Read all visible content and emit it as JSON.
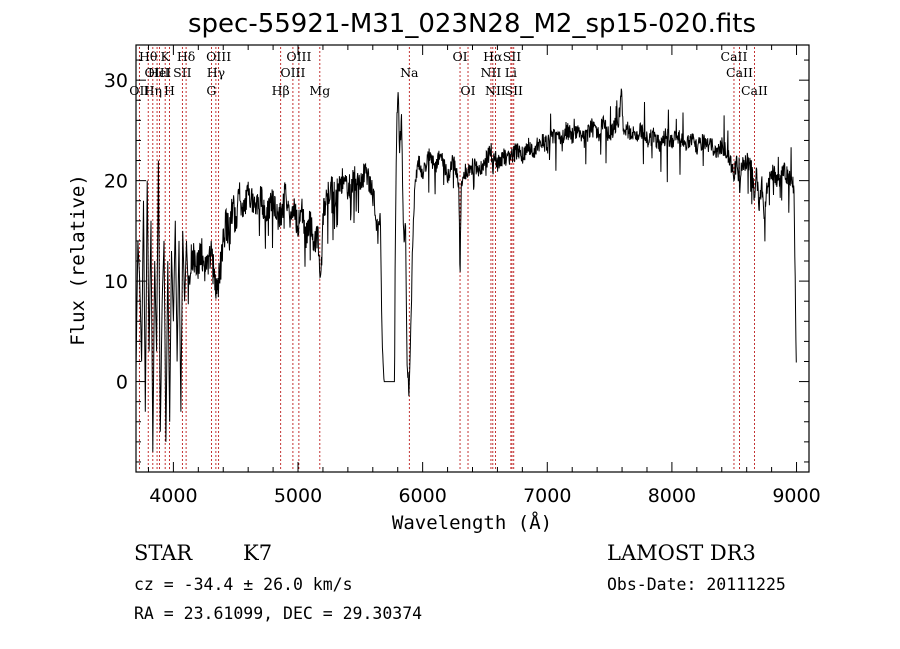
{
  "chart_data": {
    "type": "line",
    "title": "spec-55921-M31_023N28_M2_sp15-020.fits",
    "xlabel": "Wavelength (Å)",
    "ylabel": "Flux (relative)",
    "xlim": [
      3700,
      9100
    ],
    "ylim": [
      -9,
      33.5
    ],
    "xticks": [
      4000,
      5000,
      6000,
      7000,
      8000,
      9000
    ],
    "yticks": [
      0,
      10,
      20,
      30
    ],
    "grid": false,
    "spectral_lines": [
      {
        "name": "OII",
        "wavelength": 3727,
        "row": 3
      },
      {
        "name": "Hθ",
        "wavelength": 3798,
        "row": 1
      },
      {
        "name": "Hη",
        "wavelength": 3835,
        "row": 3
      },
      {
        "name": "OIII",
        "wavelength": 3869,
        "row": 2
      },
      {
        "name": "HeI",
        "wavelength": 3889,
        "row": 2
      },
      {
        "name": "K",
        "wavelength": 3934,
        "row": 1
      },
      {
        "name": "H",
        "wavelength": 3968,
        "row": 3
      },
      {
        "name": "SII",
        "wavelength": 4072,
        "row": 2
      },
      {
        "name": "Hδ",
        "wavelength": 4102,
        "row": 1
      },
      {
        "name": "G",
        "wavelength": 4305,
        "row": 3
      },
      {
        "name": "Hγ",
        "wavelength": 4341,
        "row": 2
      },
      {
        "name": "OIII",
        "wavelength": 4363,
        "row": 1
      },
      {
        "name": "Hβ",
        "wavelength": 4861,
        "row": 3
      },
      {
        "name": "OIII",
        "wavelength": 4959,
        "row": 2
      },
      {
        "name": "OIII",
        "wavelength": 5007,
        "row": 1
      },
      {
        "name": "Mg",
        "wavelength": 5175,
        "row": 3
      },
      {
        "name": "Na",
        "wavelength": 5893,
        "row": 2
      },
      {
        "name": "OI",
        "wavelength": 6300,
        "row": 1
      },
      {
        "name": "OI",
        "wavelength": 6364,
        "row": 3
      },
      {
        "name": "NII",
        "wavelength": 6548,
        "row": 2
      },
      {
        "name": "Hα",
        "wavelength": 6563,
        "row": 1
      },
      {
        "name": "NII",
        "wavelength": 6584,
        "row": 3
      },
      {
        "name": "SII",
        "wavelength": 6717,
        "row": 1
      },
      {
        "name": "Li",
        "wavelength": 6708,
        "row": 2
      },
      {
        "name": "SII",
        "wavelength": 6731,
        "row": 3
      },
      {
        "name": "CaII",
        "wavelength": 8498,
        "row": 1
      },
      {
        "name": "CaII",
        "wavelength": 8542,
        "row": 2
      },
      {
        "name": "CaII",
        "wavelength": 8662,
        "row": 3
      }
    ],
    "series": [
      {
        "name": "flux",
        "anchors": [
          [
            3700,
            1
          ],
          [
            3715,
            14
          ],
          [
            3730,
            10
          ],
          [
            3745,
            2
          ],
          [
            3760,
            18
          ],
          [
            3775,
            -3
          ],
          [
            3790,
            20
          ],
          [
            3805,
            3
          ],
          [
            3820,
            16
          ],
          [
            3835,
            -7
          ],
          [
            3850,
            12
          ],
          [
            3865,
            3
          ],
          [
            3880,
            22
          ],
          [
            3895,
            -5
          ],
          [
            3910,
            8
          ],
          [
            3925,
            14
          ],
          [
            3940,
            -6
          ],
          [
            3955,
            12
          ],
          [
            3970,
            -4
          ],
          [
            3985,
            13
          ],
          [
            4000,
            6
          ],
          [
            4015,
            16
          ],
          [
            4030,
            2
          ],
          [
            4045,
            14
          ],
          [
            4060,
            -3
          ],
          [
            4075,
            15
          ],
          [
            4090,
            8
          ],
          [
            4105,
            14
          ],
          [
            4120,
            9
          ],
          [
            4150,
            13
          ],
          [
            4180,
            11
          ],
          [
            4200,
            12
          ],
          [
            4230,
            13
          ],
          [
            4260,
            10.5
          ],
          [
            4300,
            13
          ],
          [
            4320,
            11
          ],
          [
            4350,
            9
          ],
          [
            4370,
            11
          ],
          [
            4400,
            13.5
          ],
          [
            4420,
            16
          ],
          [
            4450,
            14.5
          ],
          [
            4480,
            18
          ],
          [
            4500,
            15.5
          ],
          [
            4530,
            19
          ],
          [
            4560,
            16.5
          ],
          [
            4600,
            19.5
          ],
          [
            4650,
            17
          ],
          [
            4700,
            18.5
          ],
          [
            4750,
            16.5
          ],
          [
            4800,
            18
          ],
          [
            4840,
            16
          ],
          [
            4870,
            17
          ],
          [
            4900,
            19
          ],
          [
            4930,
            16.5
          ],
          [
            4960,
            17.5
          ],
          [
            5000,
            15.5
          ],
          [
            5030,
            17
          ],
          [
            5060,
            14.5
          ],
          [
            5100,
            16
          ],
          [
            5130,
            13.5
          ],
          [
            5160,
            15
          ],
          [
            5175,
            10.5
          ],
          [
            5190,
            12.5
          ],
          [
            5200,
            16.5
          ],
          [
            5230,
            18
          ],
          [
            5260,
            19.5
          ],
          [
            5300,
            18.5
          ],
          [
            5350,
            20
          ],
          [
            5400,
            19
          ],
          [
            5450,
            20.5
          ],
          [
            5500,
            19.5
          ],
          [
            5550,
            21
          ],
          [
            5600,
            19
          ],
          [
            5640,
            15
          ],
          [
            5660,
            16.5
          ],
          [
            5675,
            4
          ],
          [
            5690,
            0
          ],
          [
            5775,
            0
          ],
          [
            5780,
            14
          ],
          [
            5795,
            27
          ],
          [
            5805,
            28.5
          ],
          [
            5815,
            23
          ],
          [
            5830,
            26
          ],
          [
            5850,
            13
          ],
          [
            5862,
            16
          ],
          [
            5875,
            2
          ],
          [
            5890,
            -1
          ],
          [
            5905,
            5
          ],
          [
            5920,
            14
          ],
          [
            5935,
            19
          ],
          [
            5960,
            22
          ],
          [
            6000,
            21
          ],
          [
            6050,
            22.5
          ],
          [
            6100,
            21.5
          ],
          [
            6150,
            22.5
          ],
          [
            6200,
            20.5
          ],
          [
            6250,
            22
          ],
          [
            6290,
            20
          ],
          [
            6300,
            10
          ],
          [
            6310,
            20
          ],
          [
            6350,
            21
          ],
          [
            6400,
            21.5
          ],
          [
            6450,
            21
          ],
          [
            6500,
            22
          ],
          [
            6550,
            23
          ],
          [
            6563,
            21
          ],
          [
            6575,
            22.5
          ],
          [
            6600,
            21.5
          ],
          [
            6650,
            22.5
          ],
          [
            6700,
            22
          ],
          [
            6750,
            23
          ],
          [
            6800,
            22.5
          ],
          [
            6850,
            23.5
          ],
          [
            6900,
            23
          ],
          [
            6950,
            24
          ],
          [
            7000,
            23.5
          ],
          [
            7050,
            24.5
          ],
          [
            7100,
            24
          ],
          [
            7150,
            25
          ],
          [
            7200,
            24.5
          ],
          [
            7250,
            25
          ],
          [
            7300,
            24
          ],
          [
            7350,
            25.5
          ],
          [
            7400,
            24.5
          ],
          [
            7450,
            25.5
          ],
          [
            7500,
            24.5
          ],
          [
            7550,
            25.5
          ],
          [
            7580,
            26.5
          ],
          [
            7595,
            29
          ],
          [
            7610,
            25
          ],
          [
            7650,
            25
          ],
          [
            7700,
            24.5
          ],
          [
            7750,
            25
          ],
          [
            7800,
            24
          ],
          [
            7850,
            24.5
          ],
          [
            7900,
            23.5
          ],
          [
            7950,
            24.5
          ],
          [
            8000,
            24
          ],
          [
            8050,
            24.5
          ],
          [
            8100,
            23.5
          ],
          [
            8150,
            24
          ],
          [
            8200,
            23.5
          ],
          [
            8250,
            24
          ],
          [
            8300,
            23.5
          ],
          [
            8350,
            23
          ],
          [
            8400,
            23.5
          ],
          [
            8450,
            22.5
          ],
          [
            8498,
            20.5
          ],
          [
            8520,
            22
          ],
          [
            8542,
            19
          ],
          [
            8560,
            21.5
          ],
          [
            8600,
            22
          ],
          [
            8640,
            21.5
          ],
          [
            8662,
            18
          ],
          [
            8680,
            21
          ],
          [
            8700,
            17
          ],
          [
            8720,
            20
          ],
          [
            8740,
            16
          ],
          [
            8760,
            19
          ],
          [
            8800,
            21
          ],
          [
            8850,
            20
          ],
          [
            8900,
            21
          ],
          [
            8950,
            20
          ],
          [
            8980,
            19.5
          ],
          [
            8995,
            4
          ],
          [
            9000,
            0
          ]
        ]
      }
    ]
  },
  "info": {
    "object_type": "STAR",
    "subclass": "K7",
    "survey": "LAMOST DR3",
    "redshift_text": "cz = -34.4 ± 26.0 km/s",
    "obs_date_text": "Obs-Date: 20111225",
    "coords_text": "RA =  23.61099, DEC =  29.30374"
  }
}
